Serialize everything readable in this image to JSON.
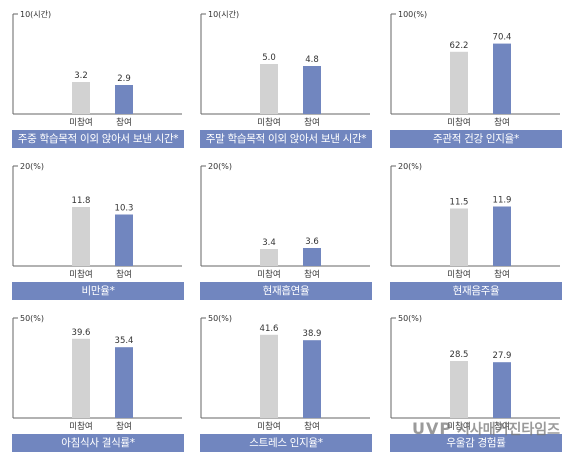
{
  "colors": {
    "non_participant": "#d2d2d2",
    "participant": "#7186bf",
    "banner": "#7186bf",
    "axis": "#666666"
  },
  "watermark": {
    "logo": "UVP",
    "text": "시사매거진타임즈"
  },
  "chart_data": [
    {
      "type": "bar",
      "categories": [
        "미참여",
        "참여"
      ],
      "values": [
        3.2,
        2.9
      ],
      "ymax_label": "10(시간)",
      "ylim": [
        0,
        10
      ],
      "title": "주중 학습목적 이외 앉아서 보낸 시간*"
    },
    {
      "type": "bar",
      "categories": [
        "미참여",
        "참여"
      ],
      "values": [
        5.0,
        4.8
      ],
      "ymax_label": "10(시간)",
      "ylim": [
        0,
        10
      ],
      "title": "주말 학습목적 이외 앉아서 보낸 시간*"
    },
    {
      "type": "bar",
      "categories": [
        "미참여",
        "참여"
      ],
      "values": [
        62.2,
        70.4
      ],
      "ymax_label": "100(%)",
      "ylim": [
        0,
        100
      ],
      "title": "주관적 건강 인지율*"
    },
    {
      "type": "bar",
      "categories": [
        "미참여",
        "참여"
      ],
      "values": [
        11.8,
        10.3
      ],
      "ymax_label": "20(%)",
      "ylim": [
        0,
        20
      ],
      "title": "비만율*"
    },
    {
      "type": "bar",
      "categories": [
        "미참여",
        "참여"
      ],
      "values": [
        3.4,
        3.6
      ],
      "ymax_label": "20(%)",
      "ylim": [
        0,
        20
      ],
      "title": "현재흡연율"
    },
    {
      "type": "bar",
      "categories": [
        "미참여",
        "참여"
      ],
      "values": [
        11.5,
        11.9
      ],
      "ymax_label": "20(%)",
      "ylim": [
        0,
        20
      ],
      "title": "현재음주율"
    },
    {
      "type": "bar",
      "categories": [
        "미참여",
        "참여"
      ],
      "values": [
        39.6,
        35.4
      ],
      "ymax_label": "50(%)",
      "ylim": [
        0,
        50
      ],
      "title": "아침식사 결식률*"
    },
    {
      "type": "bar",
      "categories": [
        "미참여",
        "참여"
      ],
      "values": [
        41.6,
        38.9
      ],
      "ymax_label": "50(%)",
      "ylim": [
        0,
        50
      ],
      "title": "스트레스 인지율*"
    },
    {
      "type": "bar",
      "categories": [
        "미참여",
        "참여"
      ],
      "values": [
        28.5,
        27.9
      ],
      "ymax_label": "50(%)",
      "ylim": [
        0,
        50
      ],
      "title": "우울감 경험률"
    }
  ]
}
